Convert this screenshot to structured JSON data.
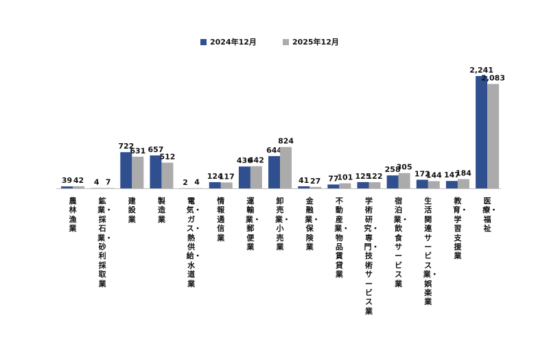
{
  "chart_data": {
    "type": "bar",
    "legend": [
      "2024年12月",
      "2025年12月"
    ],
    "legend_position": "top-center",
    "colors": [
      "#2f4f8f",
      "#ababab"
    ],
    "categories": [
      "農林漁業",
      "鉱業・採石業・砂利採取業",
      "建設業",
      "製造業",
      "電気・ガス・熱供給・水道業",
      "情報通信業",
      "運輸業・郵便業",
      "卸売業・小売業",
      "金融業・保険業",
      "不動産業・物品賃貸業",
      "学術研究・専門・技術サービス業",
      "宿泊業・飲食サービス業",
      "生活関連サービス業・娯楽業",
      "教育・学習支援業",
      "医療・福祉"
    ],
    "series": [
      {
        "name": "2024年12月",
        "values": [
          39,
          4,
          722,
          657,
          2,
          124,
          436,
          644,
          41,
          77,
          125,
          258,
          172,
          147,
          2241
        ]
      },
      {
        "name": "2025年12月",
        "values": [
          42,
          7,
          631,
          512,
          4,
          117,
          442,
          824,
          27,
          101,
          122,
          305,
          144,
          184,
          2083
        ]
      }
    ],
    "value_labels": [
      [
        "39",
        "4",
        "722",
        "657",
        "2",
        "124",
        "436",
        "644",
        "41",
        "77",
        "125",
        "258",
        "172",
        "147",
        "2,241"
      ],
      [
        "42",
        "7",
        "631",
        "512",
        "4",
        "117",
        "442",
        "824",
        "27",
        "101",
        "122",
        "305",
        "144",
        "184",
        "2,083"
      ]
    ],
    "ylim": [
      0,
      2241
    ],
    "grid": false
  }
}
